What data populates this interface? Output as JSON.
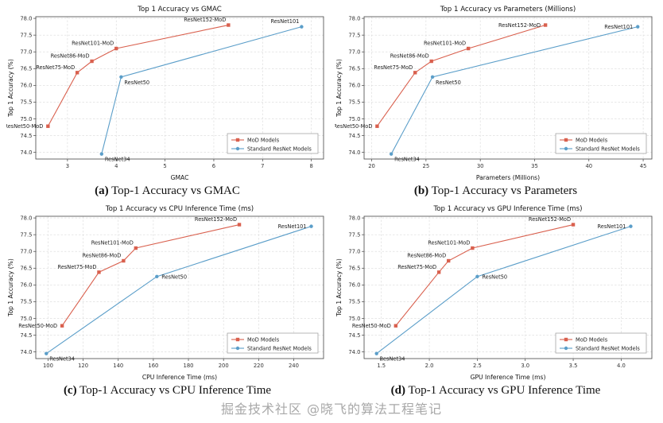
{
  "watermark": "掘金技术社区 @晓飞的算法工程笔记",
  "captions": [
    {
      "tag": "(a)",
      "text": "Top-1 Accuracy vs GMAC"
    },
    {
      "tag": "(b)",
      "text": "Top-1 Accuracy vs Parameters"
    },
    {
      "tag": "(c)",
      "text": "Top-1 Accuracy vs CPU Inference Time"
    },
    {
      "tag": "(d)",
      "text": "Top-1 Accuracy vs GPU Inference Time"
    }
  ],
  "colors": {
    "mod": "#d9604e",
    "std": "#5b9ec9",
    "grid": "#d9d9d9",
    "axis": "#444444"
  },
  "chart_data": [
    {
      "type": "line",
      "title": "Top 1 Accuracy vs GMAC",
      "xlabel": "GMAC",
      "ylabel": "Top 1 Accuracy (%)",
      "xlim": [
        2.35,
        8.25
      ],
      "ylim": [
        73.8,
        78.05
      ],
      "xticks": [
        3,
        4,
        5,
        6,
        7,
        8
      ],
      "xtick_labels": [
        "3",
        "4",
        "5",
        "6",
        "7",
        "8"
      ],
      "yticks": [
        74.0,
        74.5,
        75.0,
        75.5,
        76.0,
        76.5,
        77.0,
        77.5,
        78.0
      ],
      "ytick_labels": [
        "74.0",
        "74.5",
        "75.0",
        "75.5",
        "76.0",
        "76.5",
        "77.0",
        "77.5",
        "78.0"
      ],
      "grid": true,
      "legend_position": "lower right",
      "series": [
        {
          "name": "MoD Models",
          "color_key": "mod",
          "marker": "square",
          "points": [
            {
              "x": 2.6,
              "y": 74.78,
              "label": "ResNet50-MoD",
              "lp": "l"
            },
            {
              "x": 3.2,
              "y": 76.38,
              "label": "ResNet75-MoD",
              "lp": "al"
            },
            {
              "x": 3.5,
              "y": 76.72,
              "label": "ResNet86-MoD",
              "lp": "al"
            },
            {
              "x": 4.0,
              "y": 77.1,
              "label": "ResNet101-MoD",
              "lp": "al"
            },
            {
              "x": 6.3,
              "y": 77.8,
              "label": "ResNet152-MoD",
              "lp": "al"
            }
          ]
        },
        {
          "name": "Standard ResNet Models",
          "color_key": "std",
          "marker": "circle",
          "points": [
            {
              "x": 3.7,
              "y": 73.95,
              "label": "ResNet34",
              "lp": "br"
            },
            {
              "x": 4.1,
              "y": 76.25,
              "label": "ResNet50",
              "lp": "br"
            },
            {
              "x": 7.8,
              "y": 77.75,
              "label": "ResNet101",
              "lp": "al"
            }
          ]
        }
      ]
    },
    {
      "type": "line",
      "title": "Top 1 Accuracy vs Parameters (Millions)",
      "xlabel": "Parameters (Millions)",
      "ylabel": "Top 1 Accuracy (%)",
      "xlim": [
        19.3,
        45.8
      ],
      "ylim": [
        73.8,
        78.05
      ],
      "xticks": [
        20,
        25,
        30,
        35,
        40,
        45
      ],
      "xtick_labels": [
        "20",
        "25",
        "30",
        "35",
        "40",
        "45"
      ],
      "yticks": [
        74.0,
        74.5,
        75.0,
        75.5,
        76.0,
        76.5,
        77.0,
        77.5,
        78.0
      ],
      "ytick_labels": [
        "74.0",
        "74.5",
        "75.0",
        "75.5",
        "76.0",
        "76.5",
        "77.0",
        "77.5",
        "78.0"
      ],
      "grid": true,
      "legend_position": "lower right",
      "series": [
        {
          "name": "MoD Models",
          "color_key": "mod",
          "marker": "square",
          "points": [
            {
              "x": 20.5,
              "y": 74.78,
              "label": "ResNet50-MoD",
              "lp": "l"
            },
            {
              "x": 24.0,
              "y": 76.38,
              "label": "ResNet75-MoD",
              "lp": "al"
            },
            {
              "x": 25.5,
              "y": 76.72,
              "label": "ResNet86-MoD",
              "lp": "al"
            },
            {
              "x": 28.9,
              "y": 77.1,
              "label": "ResNet101-MoD",
              "lp": "al"
            },
            {
              "x": 36.0,
              "y": 77.8,
              "label": "ResNet152-MoD",
              "lp": "l"
            }
          ]
        },
        {
          "name": "Standard ResNet Models",
          "color_key": "std",
          "marker": "circle",
          "points": [
            {
              "x": 21.8,
              "y": 73.95,
              "label": "ResNet34",
              "lp": "br"
            },
            {
              "x": 25.6,
              "y": 76.25,
              "label": "ResNet50",
              "lp": "br"
            },
            {
              "x": 44.5,
              "y": 77.75,
              "label": "ResNet101",
              "lp": "l"
            }
          ]
        }
      ]
    },
    {
      "type": "line",
      "title": "Top 1 Accuracy vs CPU Inference Time (ms)",
      "xlabel": "CPU Inference Time (ms)",
      "ylabel": "Top 1 Accuracy (%)",
      "xlim": [
        93,
        257
      ],
      "ylim": [
        73.8,
        78.05
      ],
      "xticks": [
        100,
        120,
        140,
        160,
        180,
        200,
        220,
        240
      ],
      "xtick_labels": [
        "100",
        "120",
        "140",
        "160",
        "180",
        "200",
        "220",
        "240"
      ],
      "yticks": [
        74.0,
        74.5,
        75.0,
        75.5,
        76.0,
        76.5,
        77.0,
        77.5,
        78.0
      ],
      "ytick_labels": [
        "74.0",
        "74.5",
        "75.0",
        "75.5",
        "76.0",
        "76.5",
        "77.0",
        "77.5",
        "78.0"
      ],
      "grid": true,
      "legend_position": "lower right",
      "series": [
        {
          "name": "MoD Models",
          "color_key": "mod",
          "marker": "square",
          "points": [
            {
              "x": 108,
              "y": 74.78,
              "label": "ResNet50-MoD",
              "lp": "l"
            },
            {
              "x": 129,
              "y": 76.38,
              "label": "ResNet75-MoD",
              "lp": "al"
            },
            {
              "x": 143,
              "y": 76.72,
              "label": "ResNet86-MoD",
              "lp": "al"
            },
            {
              "x": 150,
              "y": 77.1,
              "label": "ResNet101-MoD",
              "lp": "al"
            },
            {
              "x": 209,
              "y": 77.8,
              "label": "ResNet152-MoD",
              "lp": "al"
            }
          ]
        },
        {
          "name": "Standard ResNet Models",
          "color_key": "std",
          "marker": "circle",
          "points": [
            {
              "x": 99,
              "y": 73.95,
              "label": "ResNet34",
              "lp": "br"
            },
            {
              "x": 162,
              "y": 76.25,
              "label": "ResNet50",
              "lp": "r"
            },
            {
              "x": 250,
              "y": 77.75,
              "label": "ResNet101",
              "lp": "l"
            }
          ]
        }
      ]
    },
    {
      "type": "line",
      "title": "Top 1 Accuracy vs GPU Inference Time (ms)",
      "xlabel": "GPU Inference Time (ms)",
      "ylabel": "Top 1 Accuracy (%)",
      "xlim": [
        1.32,
        4.32
      ],
      "ylim": [
        73.8,
        78.05
      ],
      "xticks": [
        1.5,
        2.0,
        2.5,
        3.0,
        3.5,
        4.0
      ],
      "xtick_labels": [
        "1.5",
        "2.0",
        "2.5",
        "3.0",
        "3.5",
        "4.0"
      ],
      "yticks": [
        74.0,
        74.5,
        75.0,
        75.5,
        76.0,
        76.5,
        77.0,
        77.5,
        78.0
      ],
      "ytick_labels": [
        "74.0",
        "74.5",
        "75.0",
        "75.5",
        "76.0",
        "76.5",
        "77.0",
        "77.5",
        "78.0"
      ],
      "grid": true,
      "legend_position": "lower right",
      "series": [
        {
          "name": "MoD Models",
          "color_key": "mod",
          "marker": "square",
          "points": [
            {
              "x": 1.65,
              "y": 74.78,
              "label": "ResNet50-MoD",
              "lp": "l"
            },
            {
              "x": 2.1,
              "y": 76.38,
              "label": "ResNet75-MoD",
              "lp": "al"
            },
            {
              "x": 2.2,
              "y": 76.72,
              "label": "ResNet86-MoD",
              "lp": "al"
            },
            {
              "x": 2.45,
              "y": 77.1,
              "label": "ResNet101-MoD",
              "lp": "al"
            },
            {
              "x": 3.5,
              "y": 77.8,
              "label": "ResNet152-MoD",
              "lp": "al"
            }
          ]
        },
        {
          "name": "Standard ResNet Models",
          "color_key": "std",
          "marker": "circle",
          "points": [
            {
              "x": 1.45,
              "y": 73.95,
              "label": "ResNet34",
              "lp": "br"
            },
            {
              "x": 2.5,
              "y": 76.25,
              "label": "ResNet50",
              "lp": "r"
            },
            {
              "x": 4.1,
              "y": 77.75,
              "label": "ResNet101",
              "lp": "l"
            }
          ]
        }
      ]
    }
  ]
}
